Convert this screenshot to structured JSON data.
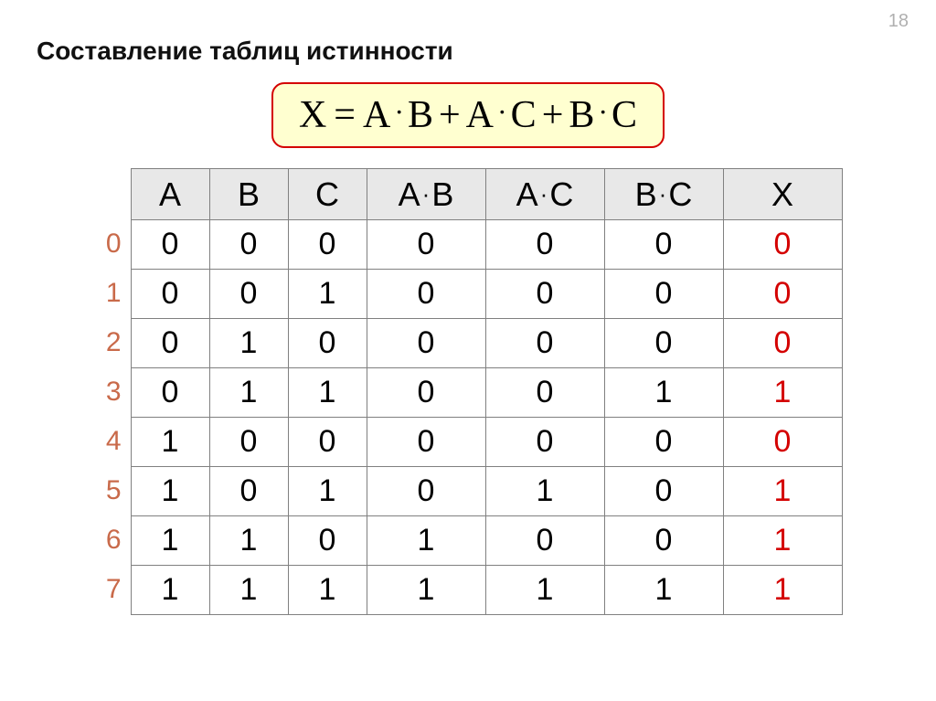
{
  "page_number": "18",
  "title": "Составление таблиц истинности",
  "formula": {
    "lhs": "X",
    "terms": [
      [
        "A",
        "B"
      ],
      [
        "A",
        "C"
      ],
      [
        "B",
        "C"
      ]
    ]
  },
  "table": {
    "columns": [
      "A",
      "B",
      "C",
      "A·B",
      "A·C",
      "B·C",
      "X"
    ],
    "column_widths": [
      "narrow",
      "narrow",
      "narrow",
      "wide",
      "wide",
      "wide",
      "wide"
    ],
    "row_labels": [
      "0",
      "1",
      "2",
      "3",
      "4",
      "5",
      "6",
      "7"
    ],
    "rows": [
      [
        "0",
        "0",
        "0",
        "0",
        "0",
        "0",
        "0"
      ],
      [
        "0",
        "0",
        "1",
        "0",
        "0",
        "0",
        "0"
      ],
      [
        "0",
        "1",
        "0",
        "0",
        "0",
        "0",
        "0"
      ],
      [
        "0",
        "1",
        "1",
        "0",
        "0",
        "1",
        "1"
      ],
      [
        "1",
        "0",
        "0",
        "0",
        "0",
        "0",
        "0"
      ],
      [
        "1",
        "0",
        "1",
        "0",
        "1",
        "0",
        "1"
      ],
      [
        "1",
        "1",
        "0",
        "1",
        "0",
        "0",
        "1"
      ],
      [
        "1",
        "1",
        "1",
        "1",
        "1",
        "1",
        "1"
      ]
    ],
    "highlight_column_index": 6
  },
  "colors": {
    "formula_bg": "#ffffd0",
    "formula_border": "#d40000",
    "header_bg": "#e8e8e8",
    "border": "#808080",
    "row_label": "#c96a4a",
    "highlight": "#d40000",
    "page_number": "#b0b0b0"
  }
}
